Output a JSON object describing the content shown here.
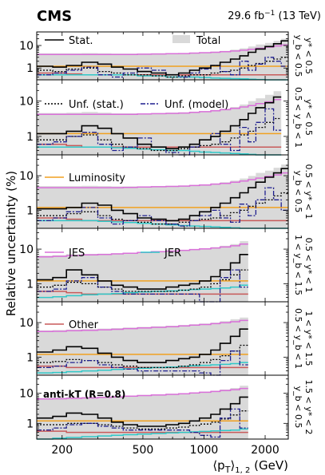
{
  "header": {
    "experiment": "CMS",
    "lumi": "29.6 fb",
    "lumi_sup": "−1",
    "energy": "(13 TeV)"
  },
  "chart_data": {
    "type": "line",
    "ylabel": "Relative uncertainty (%)",
    "xlabel_tex": "⟨p",
    "xlabel_sub": "T",
    "xlabel_rest": "⟩",
    "xlabel_idx": "1, 2",
    "xlabel_unit": "(GeV)",
    "xscale": "log",
    "yscale": "log",
    "xlim": [
      150,
      2600
    ],
    "ylim": [
      0.3,
      40
    ],
    "xticks": [
      200,
      500,
      1000,
      2000
    ],
    "yticks": [
      1,
      10
    ],
    "annotation": "anti-kT (R=0.8)",
    "colors": {
      "stat": "#000000",
      "total": "#d9d9d9",
      "unf_stat": "#000000",
      "unf_model": "#1f1f8f",
      "luminosity": "#f0a020",
      "jes": "#d970d9",
      "jer": "#30c8c8",
      "other": "#c85a5a"
    },
    "legend": [
      {
        "panel": 0,
        "items": [
          {
            "key": "stat",
            "label": "Stat."
          },
          {
            "key": "total",
            "label": "Total"
          }
        ]
      },
      {
        "panel": 1,
        "items": [
          {
            "key": "unf_stat",
            "label": "Unf. (stat.)"
          },
          {
            "key": "unf_model",
            "label": "Unf. (model)"
          }
        ]
      },
      {
        "panel": 2,
        "items": [
          {
            "key": "luminosity",
            "label": "Luminosity"
          }
        ]
      },
      {
        "panel": 3,
        "items": [
          {
            "key": "jes",
            "label": "JES"
          },
          {
            "key": "jer",
            "label": "JER"
          }
        ]
      },
      {
        "panel": 4,
        "items": [
          {
            "key": "other",
            "label": "Other"
          }
        ]
      }
    ],
    "bins": [
      150,
      180,
      210,
      250,
      300,
      350,
      400,
      470,
      550,
      650,
      750,
      850,
      950,
      1080,
      1200,
      1350,
      1500,
      1650,
      1800,
      2000,
      2200,
      2400,
      2600
    ],
    "panels": [
      {
        "label_line1": "y* < 0.5",
        "label_line2": "y_b < 0.5",
        "n": 22,
        "stat": [
          1.2,
          1.1,
          1.3,
          1.8,
          1.5,
          1.1,
          0.9,
          0.7,
          0.6,
          0.5,
          0.6,
          0.8,
          1.0,
          1.3,
          1.8,
          2.5,
          3.5,
          5,
          7,
          9,
          12,
          16
        ],
        "unf_stat": [
          0.8,
          0.7,
          0.9,
          1.0,
          0.7,
          0.6,
          0.5,
          0.5,
          0.45,
          0.4,
          0.45,
          0.5,
          0.5,
          0.6,
          0.7,
          0.8,
          1.0,
          1.3,
          1.6,
          2.0,
          2.5,
          3.0
        ],
        "unf_model": [
          0.5,
          0.6,
          0.8,
          1.1,
          0.5,
          0.4,
          0.6,
          1.0,
          0.8,
          0.5,
          0.4,
          0.6,
          0.9,
          1.3,
          0.7,
          0.5,
          2.0,
          0.8,
          1.5,
          3.0,
          2.0,
          1.2
        ],
        "luminosity": [
          1.2,
          1.2,
          1.2,
          1.2,
          1.2,
          1.2,
          1.2,
          1.2,
          1.2,
          1.2,
          1.2,
          1.2,
          1.2,
          1.2,
          1.2,
          1.2,
          1.2,
          1.2,
          1.2,
          1.2,
          1.2,
          1.2
        ],
        "jes": [
          4.0,
          4.0,
          4.0,
          4.0,
          4.0,
          4.0,
          4.0,
          4.1,
          4.2,
          4.3,
          4.4,
          4.6,
          4.8,
          5.0,
          5.3,
          5.7,
          6.2,
          6.8,
          7.5,
          8.5,
          9.5,
          10.5
        ],
        "jer": [
          0.5,
          0.5,
          0.5,
          0.5,
          0.5,
          0.5,
          0.5,
          0.45,
          0.45,
          0.4,
          0.4,
          0.4,
          0.38,
          0.36,
          0.35,
          0.34,
          0.33,
          0.32,
          0.31,
          0.3,
          0.3,
          0.3
        ],
        "other": [
          0.6,
          0.6,
          0.55,
          0.5,
          0.5,
          0.5,
          0.5,
          0.5,
          0.5,
          0.5,
          0.5,
          0.5,
          0.5,
          0.5,
          0.5,
          0.5,
          0.5,
          0.5,
          0.5,
          0.5,
          0.5,
          0.5
        ],
        "total": [
          4.5,
          4.5,
          4.5,
          4.6,
          4.5,
          4.4,
          4.4,
          4.4,
          4.5,
          4.5,
          4.6,
          4.8,
          5.0,
          5.3,
          5.8,
          6.5,
          7.5,
          9,
          11,
          13,
          16,
          20
        ]
      },
      {
        "label_line1": "y* < 0.5",
        "label_line2": "0.5 < y_b < 1",
        "n": 21,
        "stat": [
          1.2,
          1.2,
          1.4,
          2.0,
          1.7,
          1.2,
          0.9,
          0.6,
          0.5,
          0.45,
          0.5,
          0.6,
          0.8,
          1.0,
          1.4,
          2.0,
          3.0,
          4.5,
          6.5,
          9,
          13
        ],
        "unf_stat": [
          0.8,
          0.8,
          1.0,
          1.1,
          0.8,
          0.6,
          0.5,
          0.45,
          0.4,
          0.4,
          0.45,
          0.5,
          0.55,
          0.6,
          0.7,
          0.9,
          1.1,
          1.4,
          1.8,
          2.5,
          3.2
        ],
        "unf_model": [
          0.6,
          0.7,
          1.0,
          1.3,
          0.6,
          0.4,
          0.5,
          0.9,
          0.5,
          0.35,
          0.3,
          0.5,
          0.8,
          1.2,
          0.6,
          0.4,
          1.8,
          0.7,
          2.5,
          6.0,
          1.5
        ],
        "luminosity": [
          1.2,
          1.2,
          1.2,
          1.2,
          1.2,
          1.2,
          1.2,
          1.2,
          1.2,
          1.2,
          1.2,
          1.2,
          1.2,
          1.2,
          1.2,
          1.2,
          1.2,
          1.2,
          1.2,
          1.2,
          1.2
        ],
        "jes": [
          4.2,
          4.2,
          4.2,
          4.2,
          4.2,
          4.2,
          4.2,
          4.3,
          4.4,
          4.5,
          4.6,
          4.8,
          5.0,
          5.3,
          5.7,
          6.2,
          6.8,
          7.5,
          8.5,
          9.5,
          11
        ],
        "jer": [
          0.5,
          0.5,
          0.5,
          0.5,
          0.5,
          0.48,
          0.46,
          0.44,
          0.42,
          0.4,
          0.4,
          0.38,
          0.36,
          0.35,
          0.34,
          0.33,
          0.32,
          0.31,
          0.3,
          0.3,
          0.3
        ],
        "other": [
          0.6,
          0.6,
          0.55,
          0.5,
          0.5,
          0.5,
          0.5,
          0.5,
          0.5,
          0.5,
          0.5,
          0.5,
          0.5,
          0.5,
          0.5,
          0.5,
          0.5,
          0.5,
          0.5,
          0.5,
          0.5
        ],
        "total": [
          4.6,
          4.6,
          4.7,
          4.9,
          4.7,
          4.5,
          4.5,
          4.5,
          4.6,
          4.7,
          4.8,
          5.0,
          5.2,
          5.6,
          6.1,
          6.8,
          8,
          10,
          12,
          15,
          19
        ]
      },
      {
        "label_line1": "0.5 < y* < 1",
        "label_line2": "y_b < 0.5",
        "n": 22,
        "stat": [
          1.1,
          1.1,
          1.2,
          1.6,
          1.4,
          1.0,
          0.8,
          0.6,
          0.55,
          0.5,
          0.55,
          0.7,
          0.9,
          1.2,
          1.6,
          2.3,
          3.2,
          4.5,
          6.5,
          9,
          12,
          16
        ],
        "unf_stat": [
          0.7,
          0.7,
          0.8,
          0.9,
          0.7,
          0.55,
          0.5,
          0.45,
          0.4,
          0.4,
          0.45,
          0.5,
          0.55,
          0.6,
          0.7,
          0.85,
          1.0,
          1.3,
          1.6,
          2.0,
          2.6,
          3.2
        ],
        "unf_model": [
          0.5,
          0.6,
          0.9,
          1.2,
          0.6,
          0.4,
          0.5,
          0.7,
          0.5,
          0.4,
          0.35,
          0.5,
          0.7,
          1.0,
          0.6,
          0.45,
          1.5,
          0.7,
          2.0,
          4.5,
          2.0,
          1.0
        ],
        "luminosity": [
          1.2,
          1.2,
          1.2,
          1.2,
          1.2,
          1.2,
          1.2,
          1.2,
          1.2,
          1.2,
          1.2,
          1.2,
          1.2,
          1.2,
          1.2,
          1.2,
          1.2,
          1.2,
          1.2,
          1.2,
          1.2,
          1.2
        ],
        "jes": [
          4.5,
          4.5,
          4.5,
          4.5,
          4.5,
          4.5,
          4.6,
          4.7,
          4.8,
          4.9,
          5.0,
          5.2,
          5.4,
          5.7,
          6.0,
          6.5,
          7.0,
          7.7,
          8.5,
          9.5,
          10.5,
          12
        ],
        "jer": [
          0.5,
          0.5,
          0.5,
          0.5,
          0.48,
          0.46,
          0.44,
          0.42,
          0.4,
          0.38,
          0.36,
          0.35,
          0.34,
          0.33,
          0.32,
          0.31,
          0.3,
          0.3,
          0.3,
          0.3,
          0.3,
          0.3
        ],
        "other": [
          0.6,
          0.6,
          0.55,
          0.5,
          0.5,
          0.5,
          0.5,
          0.5,
          0.5,
          0.5,
          0.5,
          0.5,
          0.5,
          0.5,
          0.5,
          0.5,
          0.5,
          0.5,
          0.5,
          0.5,
          0.5,
          0.5
        ],
        "total": [
          5.0,
          5.0,
          5.0,
          5.1,
          5.0,
          4.9,
          4.9,
          4.9,
          5.0,
          5.1,
          5.2,
          5.4,
          5.6,
          6.0,
          6.5,
          7.2,
          8.3,
          9.8,
          12,
          14,
          17,
          21
        ]
      },
      {
        "label_line1": "0.5 < y* < 1",
        "label_line2": "1 < y_b < 1.5",
        "n": 17,
        "stat": [
          1.3,
          1.5,
          2.5,
          1.8,
          1.2,
          0.9,
          0.8,
          0.7,
          0.7,
          0.8,
          0.9,
          1.0,
          1.2,
          1.6,
          2.5,
          4.0,
          7.0
        ],
        "unf_stat": [
          0.8,
          0.9,
          1.1,
          1.0,
          0.8,
          0.7,
          0.6,
          0.6,
          0.6,
          0.6,
          0.65,
          0.7,
          0.8,
          1.0,
          1.3,
          1.8,
          2.5
        ],
        "unf_model": [
          0.6,
          0.7,
          1.2,
          1.5,
          0.8,
          0.6,
          0.5,
          0.5,
          0.5,
          0.5,
          0.5,
          0.5,
          0.3,
          0.25,
          1.5,
          2.5,
          0.8
        ],
        "luminosity": [
          1.2,
          1.2,
          1.2,
          1.2,
          1.2,
          1.2,
          1.2,
          1.2,
          1.2,
          1.2,
          1.2,
          1.2,
          1.2,
          1.2,
          1.2,
          1.2,
          1.2
        ],
        "jes": [
          6.0,
          6.2,
          6.5,
          6.8,
          7.0,
          7.3,
          7.6,
          8.0,
          8.4,
          8.8,
          9.2,
          9.7,
          10.2,
          10.8,
          11.5,
          12.5,
          14
        ],
        "jer": [
          0.4,
          0.42,
          0.45,
          0.48,
          0.5,
          0.52,
          0.55,
          0.58,
          0.6,
          0.62,
          0.65,
          0.68,
          0.7,
          0.72,
          0.75,
          0.8,
          0.9
        ],
        "other": [
          0.6,
          0.6,
          0.55,
          0.5,
          0.5,
          0.5,
          0.5,
          0.5,
          0.5,
          0.5,
          0.5,
          0.5,
          0.5,
          0.5,
          0.5,
          0.5,
          0.5
        ],
        "total": [
          6.5,
          6.7,
          7.2,
          7.3,
          7.4,
          7.6,
          7.9,
          8.3,
          8.7,
          9.1,
          9.5,
          10,
          10.6,
          11.3,
          12.5,
          14,
          17
        ]
      },
      {
        "label_line1": "1 < y* < 1.5",
        "label_line2": "0.5 < y_b < 1",
        "n": 17,
        "stat": [
          1.4,
          1.6,
          2.0,
          1.8,
          1.3,
          1.0,
          0.8,
          0.7,
          0.7,
          0.8,
          0.9,
          1.0,
          1.2,
          1.6,
          2.5,
          4.0,
          6.5
        ],
        "unf_stat": [
          0.7,
          0.75,
          0.85,
          0.8,
          0.7,
          0.6,
          0.55,
          0.5,
          0.5,
          0.5,
          0.55,
          0.6,
          0.7,
          0.85,
          1.1,
          1.5,
          2.2
        ],
        "unf_model": [
          0.5,
          0.55,
          0.7,
          0.8,
          0.6,
          0.5,
          0.45,
          0.4,
          0.4,
          0.4,
          0.4,
          0.4,
          0.35,
          0.3,
          0.8,
          1.5,
          0.6
        ],
        "luminosity": [
          1.2,
          1.2,
          1.2,
          1.2,
          1.2,
          1.2,
          1.2,
          1.2,
          1.2,
          1.2,
          1.2,
          1.2,
          1.2,
          1.2,
          1.2,
          1.2,
          1.2
        ],
        "jes": [
          5.5,
          5.6,
          5.8,
          6.0,
          6.2,
          6.4,
          6.7,
          7.0,
          7.3,
          7.6,
          8.0,
          8.4,
          8.8,
          9.3,
          9.9,
          10.6,
          11.5
        ],
        "jer": [
          0.35,
          0.36,
          0.38,
          0.4,
          0.42,
          0.44,
          0.46,
          0.48,
          0.5,
          0.52,
          0.54,
          0.56,
          0.58,
          0.6,
          0.62,
          0.65,
          0.7
        ],
        "other": [
          0.55,
          0.55,
          0.5,
          0.5,
          0.5,
          0.5,
          0.5,
          0.5,
          0.5,
          0.5,
          0.5,
          0.5,
          0.5,
          0.5,
          0.5,
          0.5,
          0.5
        ],
        "total": [
          6.0,
          6.1,
          6.3,
          6.5,
          6.7,
          6.9,
          7.2,
          7.5,
          7.8,
          8.1,
          8.5,
          8.9,
          9.4,
          10,
          11,
          12.5,
          14
        ]
      },
      {
        "label_line1": "1.5 < y* < 2",
        "label_line2": "y_b < 0.5",
        "n": 17,
        "stat": [
          1.5,
          1.7,
          2.2,
          2.0,
          1.5,
          1.1,
          0.9,
          0.8,
          0.8,
          0.9,
          1.0,
          1.2,
          1.5,
          2.0,
          3.0,
          4.5,
          7.5
        ],
        "unf_stat": [
          0.9,
          0.9,
          1.0,
          1.0,
          0.9,
          0.8,
          0.7,
          0.65,
          0.65,
          0.7,
          0.75,
          0.85,
          0.95,
          1.1,
          1.4,
          1.9,
          2.6
        ],
        "unf_model": [
          0.6,
          0.7,
          0.9,
          1.0,
          0.8,
          0.7,
          0.6,
          0.6,
          0.6,
          0.6,
          0.6,
          0.5,
          0.4,
          0.35,
          1.5,
          3.0,
          0.7
        ],
        "luminosity": [
          1.2,
          1.2,
          1.2,
          1.2,
          1.2,
          1.2,
          1.2,
          1.2,
          1.2,
          1.2,
          1.2,
          1.2,
          1.2,
          1.2,
          1.2,
          1.2,
          1.2
        ],
        "jes": [
          6.5,
          6.6,
          6.8,
          7.0,
          7.3,
          7.6,
          8.0,
          8.4,
          8.8,
          9.2,
          9.7,
          10.2,
          10.8,
          11.5,
          12.3,
          13.2,
          14.5
        ],
        "jer": [
          0.3,
          0.32,
          0.34,
          0.36,
          0.38,
          0.4,
          0.42,
          0.44,
          0.46,
          0.48,
          0.5,
          0.52,
          0.54,
          0.56,
          0.58,
          0.6,
          0.65
        ],
        "other": [
          0.55,
          0.55,
          0.5,
          0.5,
          0.5,
          0.5,
          0.5,
          0.5,
          0.5,
          0.5,
          0.5,
          0.5,
          0.5,
          0.5,
          0.5,
          0.5,
          0.5
        ],
        "total": [
          7.0,
          7.1,
          7.4,
          7.6,
          7.8,
          8.0,
          8.4,
          8.8,
          9.2,
          9.6,
          10.1,
          10.7,
          11.4,
          12.2,
          13.5,
          15,
          18
        ]
      }
    ]
  }
}
